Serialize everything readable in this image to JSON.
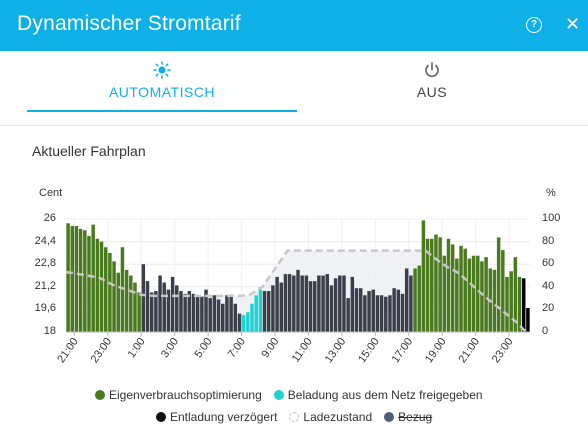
{
  "header": {
    "title": "Dynamischer Stromtarif",
    "help_icon": "question-circle-icon",
    "close_icon": "close-icon"
  },
  "tabs": [
    {
      "label": "AUTOMATISCH",
      "icon": "sun-icon",
      "active": true
    },
    {
      "label": "AUS",
      "icon": "power-icon",
      "active": false
    }
  ],
  "section": {
    "title": "Aktueller Fahrplan"
  },
  "colors": {
    "accent": "#0fb0e8",
    "eigen": "#4a7a1e",
    "netz": "#1fd1d1",
    "entladung": "#3a3f4a",
    "soc": "#c8c8c8",
    "bezug": "#4f5f78"
  },
  "chart_data": {
    "type": "bar",
    "y_left": {
      "label": "Cent",
      "ticks": [
        "26",
        "24,4",
        "22,8",
        "21,2",
        "19,6",
        "18"
      ],
      "range": [
        18,
        26
      ]
    },
    "y_right": {
      "label": "%",
      "ticks": [
        "100",
        "80",
        "60",
        "40",
        "20",
        "0"
      ],
      "range": [
        0,
        100
      ]
    },
    "x_ticks": [
      "21:00",
      "23:00",
      "1:00",
      "3:00",
      "5:00",
      "7:00",
      "9:00",
      "11:00",
      "13:00",
      "15:00",
      "17:00",
      "19:00",
      "21:00",
      "23:00"
    ],
    "interval_minutes": 15,
    "start": "20:30",
    "price_ct": [
      25.7,
      25.5,
      25.5,
      25.3,
      25.2,
      24.8,
      25.6,
      24.6,
      24.4,
      24.0,
      23.6,
      23.0,
      22.2,
      24.0,
      22.4,
      22.0,
      21.5,
      20.8,
      22.8,
      21.6,
      20.8,
      20.9,
      22.0,
      21.5,
      21.0,
      21.9,
      21.3,
      20.9,
      20.7,
      20.9,
      20.7,
      20.5,
      20.5,
      21.0,
      20.4,
      20.6,
      20.3,
      20.0,
      20.6,
      20.5,
      20.0,
      19.3,
      19.2,
      19.4,
      20.0,
      20.6,
      21.0,
      20.9,
      20.9,
      21.3,
      21.9,
      21.5,
      22.1,
      22.1,
      22.0,
      22.4,
      22.0,
      22.0,
      21.6,
      21.6,
      22.0,
      22.0,
      22.1,
      21.3,
      21.8,
      22.0,
      22.0,
      20.4,
      21.9,
      21.1,
      21.1,
      20.6,
      20.9,
      21.0,
      20.6,
      20.6,
      20.5,
      20.6,
      21.1,
      21.0,
      20.7,
      22.5,
      22.0,
      22.5,
      22.7,
      25.9,
      24.6,
      24.6,
      24.9,
      24.7,
      23.4,
      24.6,
      24.2,
      23.2,
      24.1,
      23.9,
      23.2,
      23.4,
      23.4,
      23.0,
      23.3,
      22.5,
      22.4,
      24.7,
      23.8,
      21.9,
      22.3,
      23.3,
      21.9,
      21.8,
      19.7
    ],
    "category": [
      "e",
      "e",
      "e",
      "e",
      "e",
      "e",
      "e",
      "e",
      "e",
      "e",
      "e",
      "e",
      "e",
      "e",
      "e",
      "e",
      "e",
      "e",
      "d",
      "d",
      "d",
      "d",
      "d",
      "d",
      "d",
      "d",
      "d",
      "d",
      "d",
      "d",
      "d",
      "d",
      "d",
      "d",
      "d",
      "d",
      "d",
      "d",
      "d",
      "d",
      "d",
      "d",
      "n",
      "n",
      "n",
      "n",
      "n",
      "d",
      "d",
      "d",
      "d",
      "d",
      "d",
      "d",
      "d",
      "d",
      "d",
      "d",
      "d",
      "d",
      "d",
      "d",
      "d",
      "d",
      "d",
      "d",
      "d",
      "d",
      "d",
      "d",
      "d",
      "d",
      "d",
      "d",
      "d",
      "d",
      "d",
      "d",
      "d",
      "d",
      "d",
      "d",
      "d",
      "e",
      "e",
      "e",
      "e",
      "e",
      "e",
      "e",
      "e",
      "e",
      "e",
      "e",
      "e",
      "e",
      "e",
      "e",
      "e",
      "e",
      "e",
      "e",
      "e",
      "e",
      "e",
      "e",
      "e",
      "e",
      "e"
    ],
    "soc_percent": {
      "x": [
        0,
        2,
        8,
        11,
        14,
        18,
        21,
        25,
        29,
        34,
        38,
        42,
        44,
        47,
        53,
        57,
        70,
        82,
        86,
        88,
        91,
        94,
        100,
        104,
        108,
        110
      ],
      "y": [
        53,
        52,
        48,
        42,
        38,
        33,
        32,
        32,
        32,
        32,
        32,
        32,
        33,
        40,
        72,
        72,
        72,
        72,
        72,
        66,
        58,
        52,
        32,
        20,
        8,
        0
      ]
    },
    "legend": [
      {
        "key": "eigen",
        "label": "Eigenverbrauchsoptimierung"
      },
      {
        "key": "netz",
        "label": "Beladung aus dem Netz freigegeben"
      },
      {
        "key": "entladung",
        "label": "Entladung verzögert"
      },
      {
        "key": "soc",
        "label": "Ladezustand"
      },
      {
        "key": "bezug",
        "label": "Bezug",
        "hidden": true
      }
    ]
  }
}
